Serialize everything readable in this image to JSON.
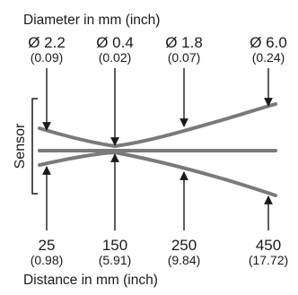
{
  "header": {
    "title": "Diameter in mm (inch)"
  },
  "diameters": [
    {
      "mm": "Ø 2.2",
      "inch": "(0.09)"
    },
    {
      "mm": "Ø 0.4",
      "inch": "(0.02)"
    },
    {
      "mm": "Ø 1.8",
      "inch": "(0.07)"
    },
    {
      "mm": "Ø 6.0",
      "inch": "(0.24)"
    }
  ],
  "sensor": {
    "label": "Sensor"
  },
  "distances": [
    {
      "mm": "25",
      "inch": "(0.98)"
    },
    {
      "mm": "150",
      "inch": "(5.91)"
    },
    {
      "mm": "250",
      "inch": "(9.84)"
    },
    {
      "mm": "450",
      "inch": "(17.72)"
    }
  ],
  "footer": {
    "title": "Distance in mm (inch)"
  },
  "colors": {
    "beam": "#7a7a7a",
    "arrow": "#1a1a1a",
    "text": "#1a1a1a"
  }
}
